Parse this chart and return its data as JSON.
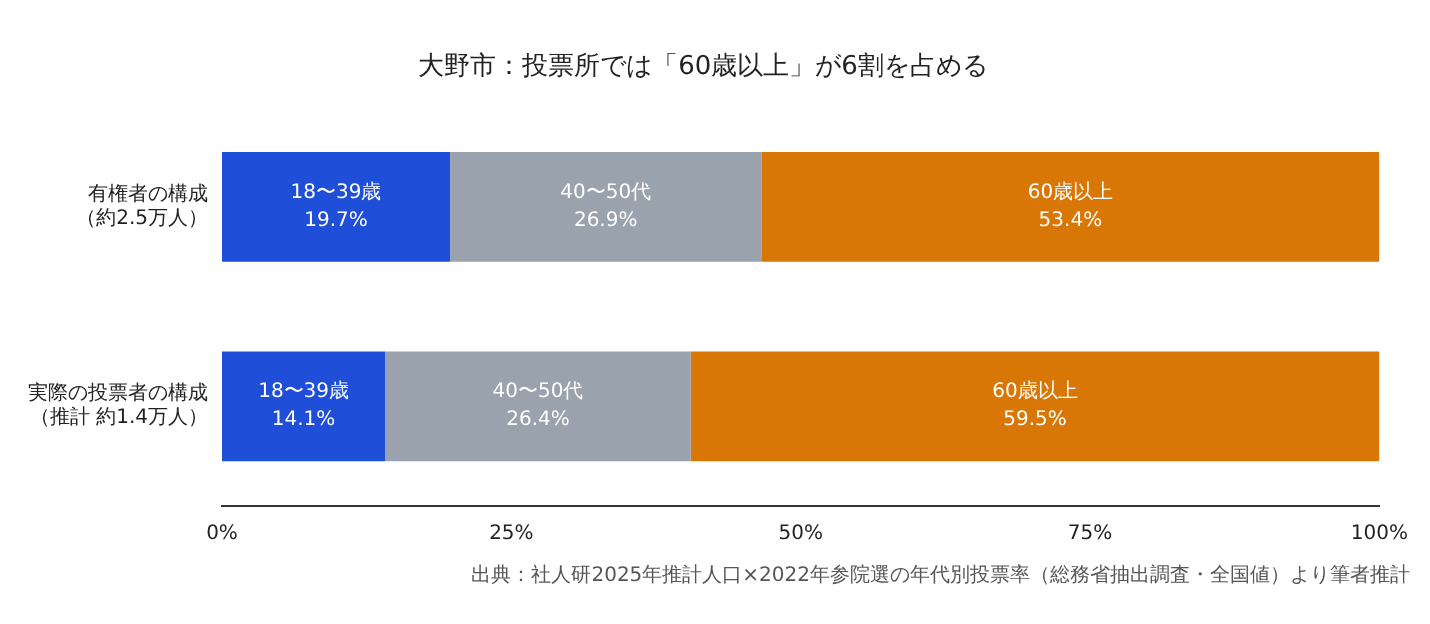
{
  "chart_data": {
    "type": "bar",
    "orientation": "horizontal",
    "stacked": true,
    "title": "大野市：投票所では「60歳以上」が6割を占める",
    "categories": [
      "有権者の構成（約2.5万人）",
      "実際の投票者の構成（推計 約1.4万人）"
    ],
    "series": [
      {
        "name": "18〜39歳",
        "color": "#1f4fd8",
        "values": [
          19.7,
          14.1
        ],
        "value_labels": [
          "19.7%",
          "14.1%"
        ]
      },
      {
        "name": "40〜50代",
        "color": "#9aa2ad",
        "values": [
          26.9,
          26.4
        ],
        "value_labels": [
          "26.9%",
          "26.4%"
        ]
      },
      {
        "name": "60歳以上",
        "color": "#d97706",
        "values": [
          53.4,
          59.5
        ],
        "value_labels": [
          "53.4%",
          "59.5%"
        ]
      }
    ],
    "xlim": [
      0,
      100
    ],
    "xticks": [
      {
        "value": 0,
        "label": "0%"
      },
      {
        "value": 25,
        "label": "25%"
      },
      {
        "value": 50,
        "label": "50%"
      },
      {
        "value": 75,
        "label": "75%"
      },
      {
        "value": 100,
        "label": "100%"
      }
    ],
    "grid": false,
    "legend": false,
    "annotations": [
      "出典：社人研2025年推計人口×2022年参院選の年代別投票率（総務省抽出調査・全国値）より筆者推計"
    ]
  }
}
